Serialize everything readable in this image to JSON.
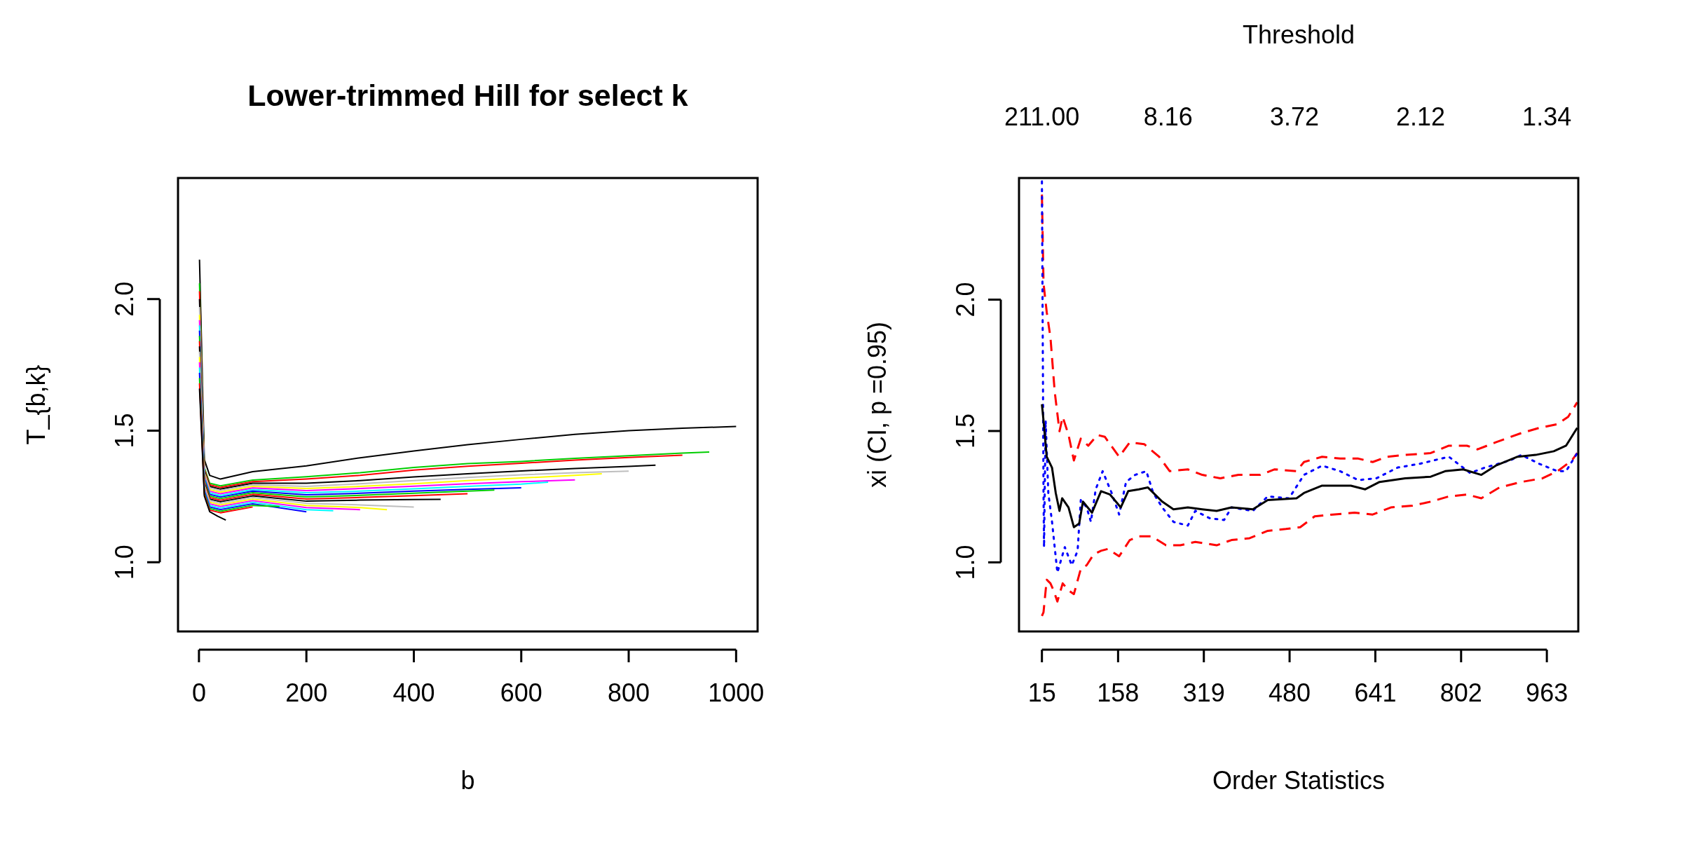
{
  "chart_data": [
    {
      "type": "line",
      "title": "Lower-trimmed Hill for select k",
      "xlabel": "b",
      "ylabel": "T_{b,k}",
      "xlim": [
        -39,
        1040
      ],
      "ylim": [
        0.737,
        2.46
      ],
      "xticks": [
        0,
        200,
        400,
        600,
        800,
        1000
      ],
      "yticks": [
        {
          "value": 1,
          "label": "1.0"
        },
        {
          "value": 1.5,
          "label": "1.5"
        },
        {
          "value": 2,
          "label": "2.0"
        }
      ],
      "series": [
        {
          "color": "#000000",
          "x": [
            1,
            10,
            20,
            40,
            100,
            200,
            300,
            400,
            500,
            600,
            700,
            800,
            900,
            1000
          ],
          "values": [
            2.15,
            1.39,
            1.33,
            1.316,
            1.344,
            1.366,
            1.397,
            1.423,
            1.447,
            1.467,
            1.486,
            1.5,
            1.509,
            1.516
          ]
        },
        {
          "color": "#00cd00",
          "x": [
            1,
            10,
            20,
            40,
            100,
            200,
            300,
            400,
            500,
            600,
            700,
            800,
            900,
            950
          ],
          "values": [
            2.06,
            1.36,
            1.3,
            1.29,
            1.312,
            1.325,
            1.34,
            1.36,
            1.375,
            1.383,
            1.395,
            1.405,
            1.415,
            1.419
          ]
        },
        {
          "color": "#ff0000",
          "x": [
            1,
            10,
            20,
            40,
            100,
            200,
            300,
            400,
            500,
            600,
            700,
            800,
            900
          ],
          "values": [
            2.03,
            1.354,
            1.294,
            1.284,
            1.306,
            1.316,
            1.33,
            1.35,
            1.365,
            1.376,
            1.388,
            1.398,
            1.407
          ]
        },
        {
          "color": "#000000",
          "x": [
            1,
            10,
            20,
            40,
            100,
            200,
            300,
            400,
            500,
            600,
            700,
            800,
            850
          ],
          "values": [
            2.0,
            1.348,
            1.288,
            1.278,
            1.3,
            1.3,
            1.31,
            1.324,
            1.336,
            1.347,
            1.356,
            1.364,
            1.369
          ]
        },
        {
          "color": "#bebebe",
          "x": [
            1,
            10,
            20,
            40,
            100,
            200,
            300,
            400,
            500,
            600,
            700,
            800
          ],
          "values": [
            1.97,
            1.342,
            1.282,
            1.272,
            1.294,
            1.288,
            1.298,
            1.31,
            1.322,
            1.332,
            1.34,
            1.346
          ]
        },
        {
          "color": "#ffff00",
          "x": [
            1,
            10,
            20,
            40,
            100,
            200,
            300,
            400,
            500,
            600,
            700,
            750
          ],
          "values": [
            1.94,
            1.336,
            1.276,
            1.266,
            1.288,
            1.28,
            1.288,
            1.298,
            1.31,
            1.32,
            1.33,
            1.336
          ]
        },
        {
          "color": "#ff00ff",
          "x": [
            1,
            10,
            20,
            40,
            100,
            200,
            300,
            400,
            500,
            600,
            700
          ],
          "values": [
            1.92,
            1.33,
            1.27,
            1.26,
            1.282,
            1.272,
            1.28,
            1.289,
            1.298,
            1.306,
            1.313
          ]
        },
        {
          "color": "#00ffff",
          "x": [
            1,
            10,
            20,
            40,
            100,
            200,
            300,
            400,
            500,
            600,
            650
          ],
          "values": [
            1.9,
            1.324,
            1.264,
            1.254,
            1.276,
            1.264,
            1.27,
            1.279,
            1.288,
            1.297,
            1.304
          ]
        },
        {
          "color": "#0000ff",
          "x": [
            1,
            10,
            20,
            40,
            100,
            200,
            300,
            400,
            500,
            600
          ],
          "values": [
            1.88,
            1.318,
            1.258,
            1.248,
            1.27,
            1.256,
            1.262,
            1.27,
            1.277,
            1.283
          ]
        },
        {
          "color": "#00cd00",
          "x": [
            1,
            10,
            20,
            40,
            100,
            200,
            300,
            400,
            500,
            550
          ],
          "values": [
            1.86,
            1.312,
            1.252,
            1.242,
            1.264,
            1.248,
            1.254,
            1.262,
            1.27,
            1.274
          ]
        },
        {
          "color": "#ff0000",
          "x": [
            1,
            10,
            20,
            40,
            100,
            200,
            300,
            400,
            500
          ],
          "values": [
            1.84,
            1.306,
            1.246,
            1.236,
            1.258,
            1.24,
            1.246,
            1.253,
            1.26
          ]
        },
        {
          "color": "#000000",
          "x": [
            1,
            10,
            20,
            40,
            100,
            200,
            300,
            400,
            450
          ],
          "values": [
            1.82,
            1.3,
            1.24,
            1.23,
            1.252,
            1.232,
            1.236,
            1.238,
            1.239
          ]
        },
        {
          "color": "#bebebe",
          "x": [
            1,
            10,
            20,
            40,
            100,
            200,
            300,
            400
          ],
          "values": [
            1.8,
            1.294,
            1.234,
            1.224,
            1.246,
            1.224,
            1.218,
            1.21
          ]
        },
        {
          "color": "#ffff00",
          "x": [
            1,
            10,
            20,
            40,
            100,
            200,
            300,
            350
          ],
          "values": [
            1.78,
            1.288,
            1.228,
            1.218,
            1.24,
            1.216,
            1.208,
            1.2
          ]
        },
        {
          "color": "#ff00ff",
          "x": [
            1,
            10,
            20,
            40,
            100,
            200,
            300
          ],
          "values": [
            1.76,
            1.282,
            1.222,
            1.212,
            1.234,
            1.208,
            1.2
          ]
        },
        {
          "color": "#00ffff",
          "x": [
            1,
            10,
            20,
            40,
            100,
            200,
            250
          ],
          "values": [
            1.74,
            1.276,
            1.216,
            1.206,
            1.228,
            1.2,
            1.196
          ]
        },
        {
          "color": "#0000ff",
          "x": [
            1,
            10,
            20,
            40,
            100,
            200
          ],
          "values": [
            1.72,
            1.27,
            1.21,
            1.2,
            1.222,
            1.192
          ]
        },
        {
          "color": "#00cd00",
          "x": [
            1,
            10,
            20,
            40,
            100,
            150
          ],
          "values": [
            1.7,
            1.264,
            1.204,
            1.194,
            1.216,
            1.212
          ]
        },
        {
          "color": "#ff0000",
          "x": [
            1,
            10,
            20,
            40,
            100
          ],
          "values": [
            1.68,
            1.258,
            1.198,
            1.188,
            1.21
          ]
        },
        {
          "color": "#000000",
          "x": [
            1,
            10,
            20,
            35,
            50
          ],
          "values": [
            1.66,
            1.252,
            1.192,
            1.175,
            1.16
          ]
        }
      ]
    },
    {
      "type": "line",
      "xlabel": "Order Statistics",
      "ylabel": "xi (CI, p =0.95)",
      "x2label": "Threshold",
      "xlim": [
        -28,
        1022
      ],
      "ylim": [
        0.737,
        2.463
      ],
      "xticks": [
        15,
        158,
        319,
        480,
        641,
        802,
        963
      ],
      "annotations": [
        "211.00",
        "8.16",
        "3.72",
        "2.12",
        "1.34"
      ],
      "yticks": [
        {
          "value": 1,
          "label": "1.0"
        },
        {
          "value": 1.5,
          "label": "1.5"
        },
        {
          "value": 2,
          "label": "2.0"
        }
      ],
      "series": [
        {
          "color": "#ff0000",
          "line_style": "dashed",
          "x": [
            15,
            18,
            24,
            31,
            39,
            48,
            54,
            65,
            75,
            88,
            102,
            119,
            133,
            160,
            180,
            207,
            235,
            255,
            289,
            316,
            350,
            384,
            425,
            452,
            493,
            507,
            541,
            575,
            609,
            636,
            663,
            697,
            745,
            779,
            813,
            833,
            867,
            915,
            949,
            983,
            1003,
            1020
          ],
          "values": [
            2.4,
            2.063,
            1.953,
            1.857,
            1.65,
            1.499,
            1.554,
            1.485,
            1.388,
            1.471,
            1.444,
            1.485,
            1.478,
            1.402,
            1.457,
            1.45,
            1.402,
            1.347,
            1.354,
            1.333,
            1.32,
            1.333,
            1.333,
            1.354,
            1.347,
            1.382,
            1.402,
            1.395,
            1.395,
            1.382,
            1.402,
            1.409,
            1.416,
            1.444,
            1.444,
            1.43,
            1.457,
            1.492,
            1.512,
            1.526,
            1.554,
            1.609
          ]
        },
        {
          "color": "#ff0000",
          "line_style": "dashed",
          "x": [
            15,
            18,
            24,
            31,
            37,
            44,
            54,
            65,
            75,
            88,
            99,
            112,
            126,
            139,
            160,
            180,
            197,
            221,
            248,
            275,
            303,
            343,
            371,
            405,
            439,
            473,
            500,
            527,
            561,
            602,
            636,
            670,
            711,
            745,
            779,
            813,
            840,
            874,
            915,
            955,
            983,
            1010,
            1020
          ],
          "values": [
            0.796,
            0.81,
            0.934,
            0.92,
            0.893,
            0.851,
            0.92,
            0.893,
            0.879,
            0.975,
            0.989,
            1.03,
            1.044,
            1.051,
            1.023,
            1.085,
            1.099,
            1.099,
            1.065,
            1.065,
            1.078,
            1.065,
            1.085,
            1.092,
            1.12,
            1.127,
            1.134,
            1.175,
            1.182,
            1.189,
            1.182,
            1.209,
            1.216,
            1.231,
            1.251,
            1.258,
            1.244,
            1.285,
            1.306,
            1.32,
            1.347,
            1.388,
            1.416
          ]
        },
        {
          "color": "#0000ff",
          "line_style": "dotted",
          "x": [
            15,
            16,
            17,
            18,
            19,
            22,
            27,
            34,
            44,
            58,
            71,
            82,
            88,
            99,
            107,
            116,
            129,
            146,
            160,
            173,
            190,
            211,
            224,
            241,
            262,
            289,
            303,
            330,
            357,
            371,
            411,
            439,
            479,
            507,
            541,
            575,
            609,
            643,
            683,
            724,
            779,
            819,
            847,
            894,
            915,
            949,
            983,
            999,
            1020
          ],
          "values": [
            2.45,
            2.063,
            1.678,
            1.264,
            1.058,
            1.54,
            1.264,
            1.154,
            0.961,
            1.058,
            0.989,
            1.044,
            1.237,
            1.209,
            1.154,
            1.278,
            1.347,
            1.264,
            1.182,
            1.306,
            1.333,
            1.347,
            1.264,
            1.209,
            1.154,
            1.14,
            1.196,
            1.168,
            1.161,
            1.209,
            1.196,
            1.251,
            1.244,
            1.333,
            1.368,
            1.347,
            1.313,
            1.32,
            1.361,
            1.375,
            1.402,
            1.34,
            1.361,
            1.388,
            1.409,
            1.375,
            1.347,
            1.347,
            1.416
          ]
        },
        {
          "color": "#000000",
          "line_style": "solid",
          "x": [
            15,
            18,
            24,
            34,
            41,
            48,
            53,
            65,
            75,
            85,
            92,
            109,
            126,
            143,
            163,
            177,
            197,
            214,
            241,
            262,
            289,
            316,
            343,
            371,
            411,
            439,
            493,
            507,
            541,
            595,
            622,
            649,
            697,
            745,
            772,
            806,
            840,
            867,
            908,
            942,
            976,
            999,
            1020
          ],
          "values": [
            1.602,
            1.54,
            1.402,
            1.36,
            1.264,
            1.196,
            1.244,
            1.209,
            1.134,
            1.148,
            1.231,
            1.189,
            1.271,
            1.258,
            1.209,
            1.271,
            1.278,
            1.285,
            1.231,
            1.202,
            1.209,
            1.202,
            1.196,
            1.209,
            1.202,
            1.237,
            1.244,
            1.264,
            1.292,
            1.292,
            1.278,
            1.306,
            1.32,
            1.326,
            1.347,
            1.354,
            1.333,
            1.368,
            1.402,
            1.409,
            1.423,
            1.444,
            1.512
          ]
        }
      ]
    }
  ]
}
